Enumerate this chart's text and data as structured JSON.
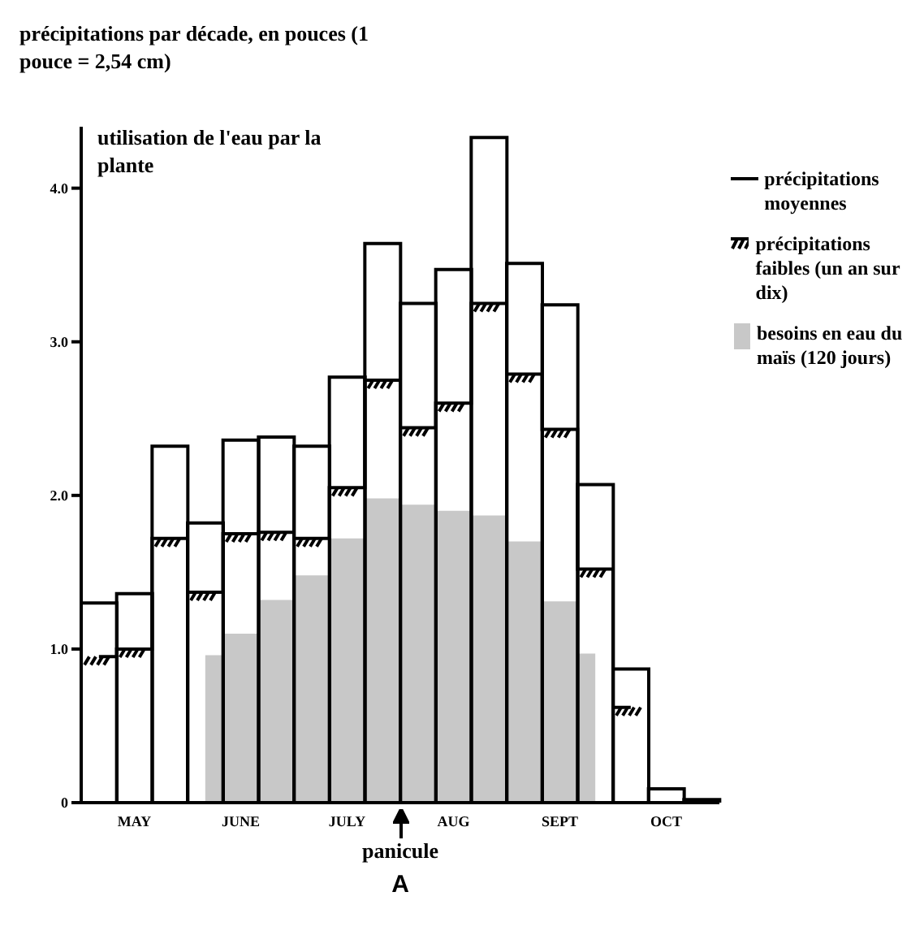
{
  "chart_data": {
    "type": "bar",
    "ylabel": "précipitations par décade, en pouces (1 pouce = 2,54 cm)",
    "categories": [
      null,
      "MAY",
      null,
      null,
      "JUNE",
      null,
      null,
      "JULY",
      null,
      null,
      "AUG",
      null,
      null,
      "SEPT",
      null,
      null,
      "OCT",
      null
    ],
    "series": [
      {
        "name": "précipitations moyennes",
        "type": "bar",
        "color": "#000000",
        "values": [
          1.3,
          1.36,
          2.32,
          1.82,
          2.36,
          2.38,
          2.32,
          2.77,
          3.64,
          3.25,
          3.47,
          4.33,
          3.51,
          3.24,
          2.07,
          0.87,
          0.09,
          0.02
        ]
      },
      {
        "name": "précipitations faibles (un an sur dix)",
        "type": "step",
        "color": "#000000",
        "values": [
          0.95,
          1.0,
          1.72,
          1.37,
          1.75,
          1.76,
          1.72,
          2.05,
          2.75,
          2.44,
          2.6,
          3.25,
          2.79,
          2.43,
          1.52,
          0.62,
          null,
          null
        ]
      },
      {
        "name": "besoins en eau du maïs (120 jours)",
        "type": "area",
        "color": "#c8c8c8",
        "values": [
          null,
          null,
          null,
          0.96,
          1.1,
          1.32,
          1.48,
          1.72,
          1.98,
          1.94,
          1.9,
          1.87,
          1.7,
          1.31,
          0.97,
          null,
          null,
          null
        ]
      }
    ],
    "ylim": [
      0,
      4.4
    ],
    "yticks": [
      0,
      {
        "value": 1,
        "label": "1.0"
      },
      {
        "value": 2,
        "label": "2.0"
      },
      {
        "value": 3,
        "label": "3.0"
      },
      {
        "value": 4,
        "label": "4.0"
      }
    ],
    "legend": "right",
    "annotations": [
      "utilisation de l'eau par la plante",
      "panicule",
      "A"
    ]
  }
}
